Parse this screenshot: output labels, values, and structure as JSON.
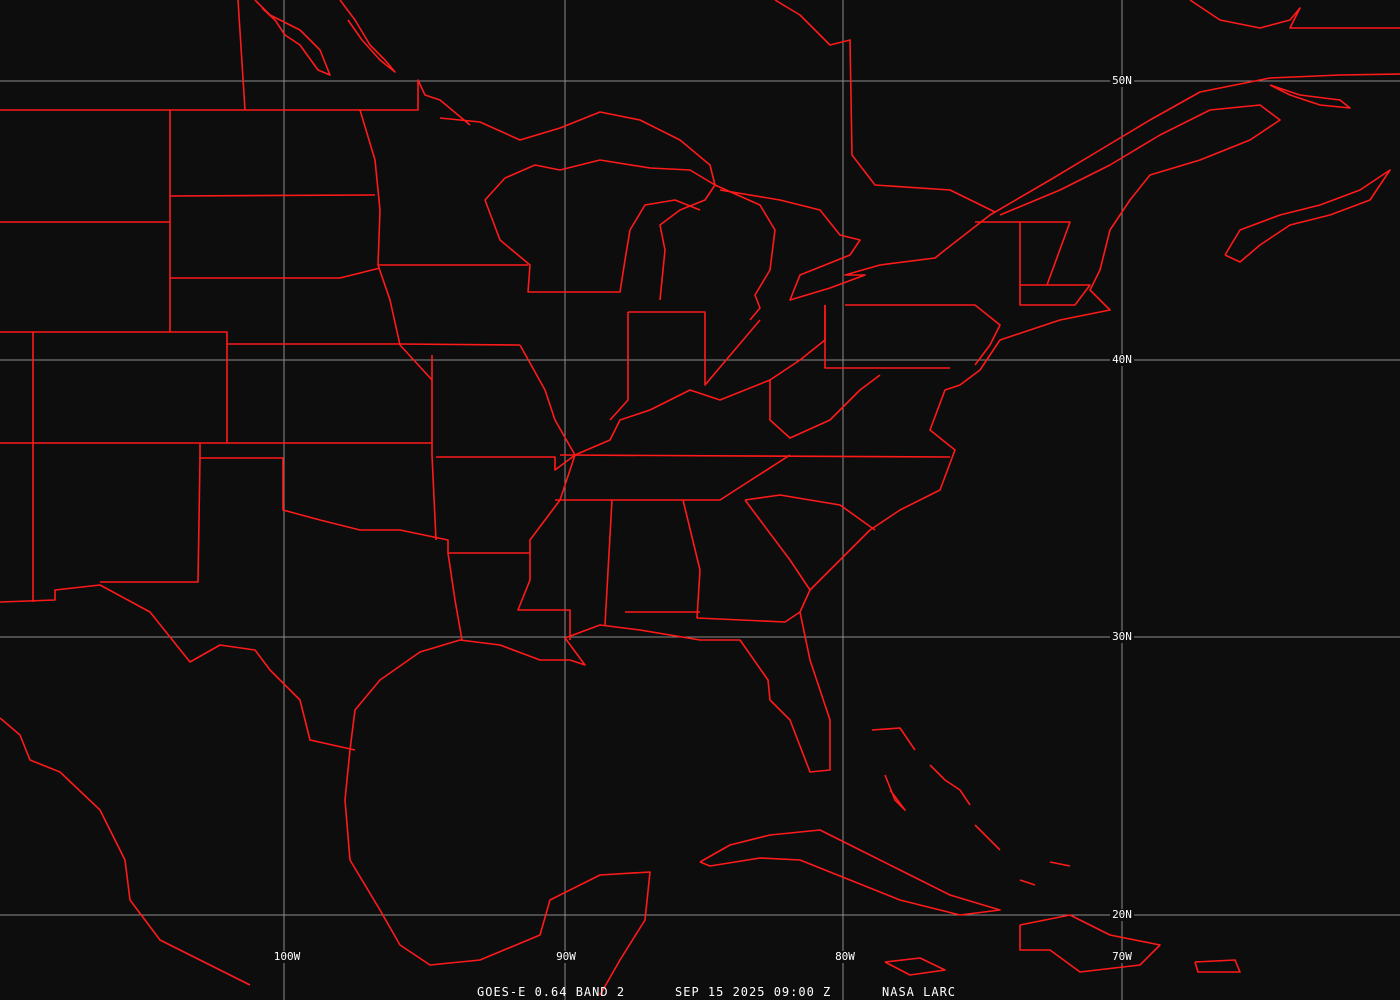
{
  "map": {
    "graticule": {
      "longitudes": [
        "100W",
        "90W",
        "80W",
        "70W"
      ],
      "latitudes": [
        "50N",
        "40N",
        "30N",
        "20N"
      ]
    },
    "colors": {
      "background": "#0d0d0d",
      "boundaries": "#ff1a1a",
      "grid": "#8c8c8c",
      "text": "#ffffff"
    }
  },
  "caption": {
    "product": "GOES-E 0.64 BAND 2",
    "datetime": "SEP 15 2025 09:00 Z",
    "source": "NASA LARC"
  }
}
